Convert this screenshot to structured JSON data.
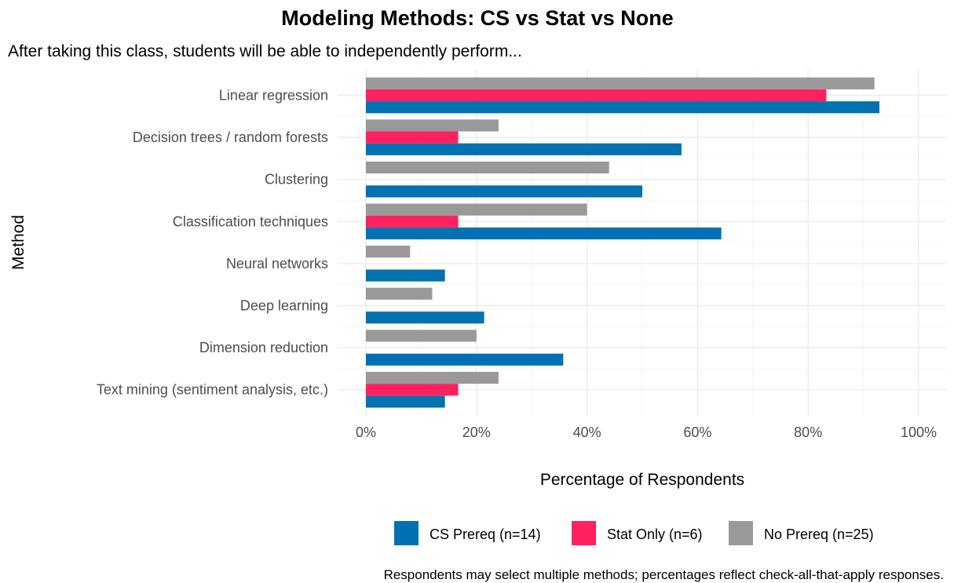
{
  "chart_data": {
    "type": "bar",
    "orientation": "horizontal",
    "title": "Modeling Methods: CS vs Stat vs None",
    "subtitle": "After taking this class, students will be able to independently perform...",
    "xlabel": "Percentage of Respondents",
    "ylabel": "Method",
    "caption": "Respondents may select multiple methods; percentages reflect check-all-that-apply responses.",
    "xlim": [
      0,
      100
    ],
    "x_ticks": [
      "0%",
      "20%",
      "40%",
      "60%",
      "80%",
      "100%"
    ],
    "x_tick_values": [
      0,
      20,
      40,
      60,
      80,
      100
    ],
    "grid": true,
    "legend_position": "bottom",
    "categories": [
      "Linear regression",
      "Decision trees / random forests",
      "Clustering",
      "Classification techniques",
      "Neural networks",
      "Deep learning",
      "Dimension reduction",
      "Text mining (sentiment analysis, etc.)"
    ],
    "series": [
      {
        "name": "CS Prereq (n=14)",
        "color": "#0072B2",
        "values": [
          92.9,
          57.1,
          50.0,
          64.3,
          14.3,
          21.4,
          35.7,
          14.3
        ]
      },
      {
        "name": "Stat Only (n=6)",
        "color": "#FF2160",
        "values": [
          83.3,
          16.7,
          0,
          16.7,
          0,
          0,
          0,
          16.7
        ]
      },
      {
        "name": "No Prereq (n=25)",
        "color": "#999999",
        "values": [
          92.0,
          24.0,
          44.0,
          40.0,
          8.0,
          12.0,
          20.0,
          24.0
        ]
      }
    ]
  }
}
